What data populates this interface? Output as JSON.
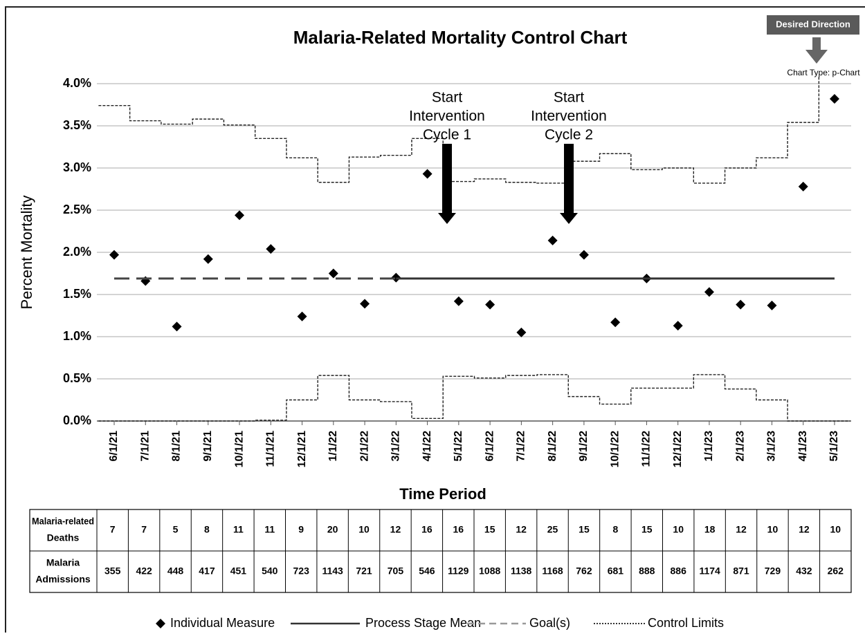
{
  "chart_data": {
    "type": "control",
    "title": "Malaria-Related Mortality Control Chart",
    "desired_direction": "Desired Direction",
    "chart_type_label": "Chart Type: p-Chart",
    "ylabel": "Percent Mortality",
    "xlabel": "Time Period",
    "categories": [
      "6/1/21",
      "7/1/21",
      "8/1/21",
      "9/1/21",
      "10/1/21",
      "11/1/21",
      "12/1/21",
      "1/1/22",
      "2/1/22",
      "3/1/22",
      "4/1/22",
      "5/1/22",
      "6/1/22",
      "7/1/22",
      "8/1/22",
      "9/1/22",
      "10/1/22",
      "11/1/22",
      "12/1/22",
      "1/1/23",
      "2/1/23",
      "3/1/23",
      "4/1/23",
      "5/1/23"
    ],
    "ylim": [
      0,
      4
    ],
    "yticks": [
      {
        "value": 0,
        "label": "0.0%"
      },
      {
        "value": 0.5,
        "label": "0.5%"
      },
      {
        "value": 1,
        "label": "1.0%"
      },
      {
        "value": 1.5,
        "label": "1.5%"
      },
      {
        "value": 2,
        "label": "2.0%"
      },
      {
        "value": 2.5,
        "label": "2.5%"
      },
      {
        "value": 3,
        "label": "3.0%"
      },
      {
        "value": 3.5,
        "label": "3.5%"
      },
      {
        "value": 4,
        "label": "4.0%"
      }
    ],
    "grid": true,
    "series": [
      {
        "name": "Individual Measure",
        "color": "#000000",
        "style": "points",
        "values": [
          1.97,
          1.66,
          1.12,
          1.92,
          2.44,
          2.04,
          1.24,
          1.75,
          1.39,
          1.7,
          2.93,
          1.42,
          1.38,
          1.05,
          2.14,
          1.97,
          1.17,
          1.69,
          1.13,
          1.53,
          1.38,
          1.37,
          2.78,
          3.82
        ]
      },
      {
        "name": "Process Stage Mean",
        "color": "#333333",
        "style": "solid",
        "values": [
          null,
          null,
          null,
          null,
          null,
          null,
          null,
          null,
          null,
          1.69,
          1.69,
          1.69,
          1.69,
          1.69,
          1.69,
          1.69,
          1.69,
          1.69,
          1.69,
          1.69,
          1.69,
          1.69,
          1.69,
          1.69
        ]
      },
      {
        "color": "#444444",
        "style": "dashed",
        "values": [
          1.69,
          1.69,
          1.69,
          1.69,
          1.69,
          1.69,
          1.69,
          1.69,
          1.69,
          1.69,
          null,
          null,
          null,
          null,
          null,
          null,
          null,
          null,
          null,
          null,
          null,
          null,
          null,
          null
        ]
      },
      {
        "name": "Control Limits",
        "color": "#222222",
        "style": "step",
        "values": [
          3.74,
          3.56,
          3.52,
          3.58,
          3.51,
          3.35,
          3.12,
          2.83,
          3.13,
          3.15,
          3.35,
          2.84,
          2.87,
          2.83,
          2.82,
          3.08,
          3.17,
          2.98,
          3.0,
          2.82,
          3.0,
          3.12,
          3.54,
          4.3
        ]
      },
      {
        "color": "#222222",
        "style": "step",
        "values": [
          0,
          0,
          0,
          0,
          0,
          0.01,
          0.25,
          0.54,
          0.25,
          0.23,
          0.03,
          0.53,
          0.51,
          0.54,
          0.55,
          0.29,
          0.2,
          0.39,
          0.39,
          0.55,
          0.38,
          0.25,
          0,
          0
        ]
      }
    ],
    "legend": [
      "Individual Measure",
      "Process Stage Mean",
      "Goal(s)",
      "Control Limits"
    ],
    "annotations": [
      [
        "Start",
        "Intervention",
        "Cycle 1"
      ],
      [
        "Start",
        "Intervention",
        "Cycle 2"
      ]
    ],
    "table": {
      "row_headers": [
        [
          "Malaria-related",
          "Deaths"
        ],
        [
          "Malaria",
          "Admissions"
        ]
      ],
      "rows": [
        [
          7,
          7,
          5,
          8,
          11,
          11,
          9,
          20,
          10,
          12,
          16,
          16,
          15,
          12,
          25,
          15,
          8,
          15,
          10,
          18,
          12,
          10,
          12,
          10
        ],
        [
          355,
          422,
          448,
          417,
          451,
          540,
          723,
          1143,
          721,
          705,
          546,
          1129,
          1088,
          1138,
          1168,
          762,
          681,
          888,
          886,
          1174,
          871,
          729,
          432,
          262
        ]
      ]
    }
  }
}
